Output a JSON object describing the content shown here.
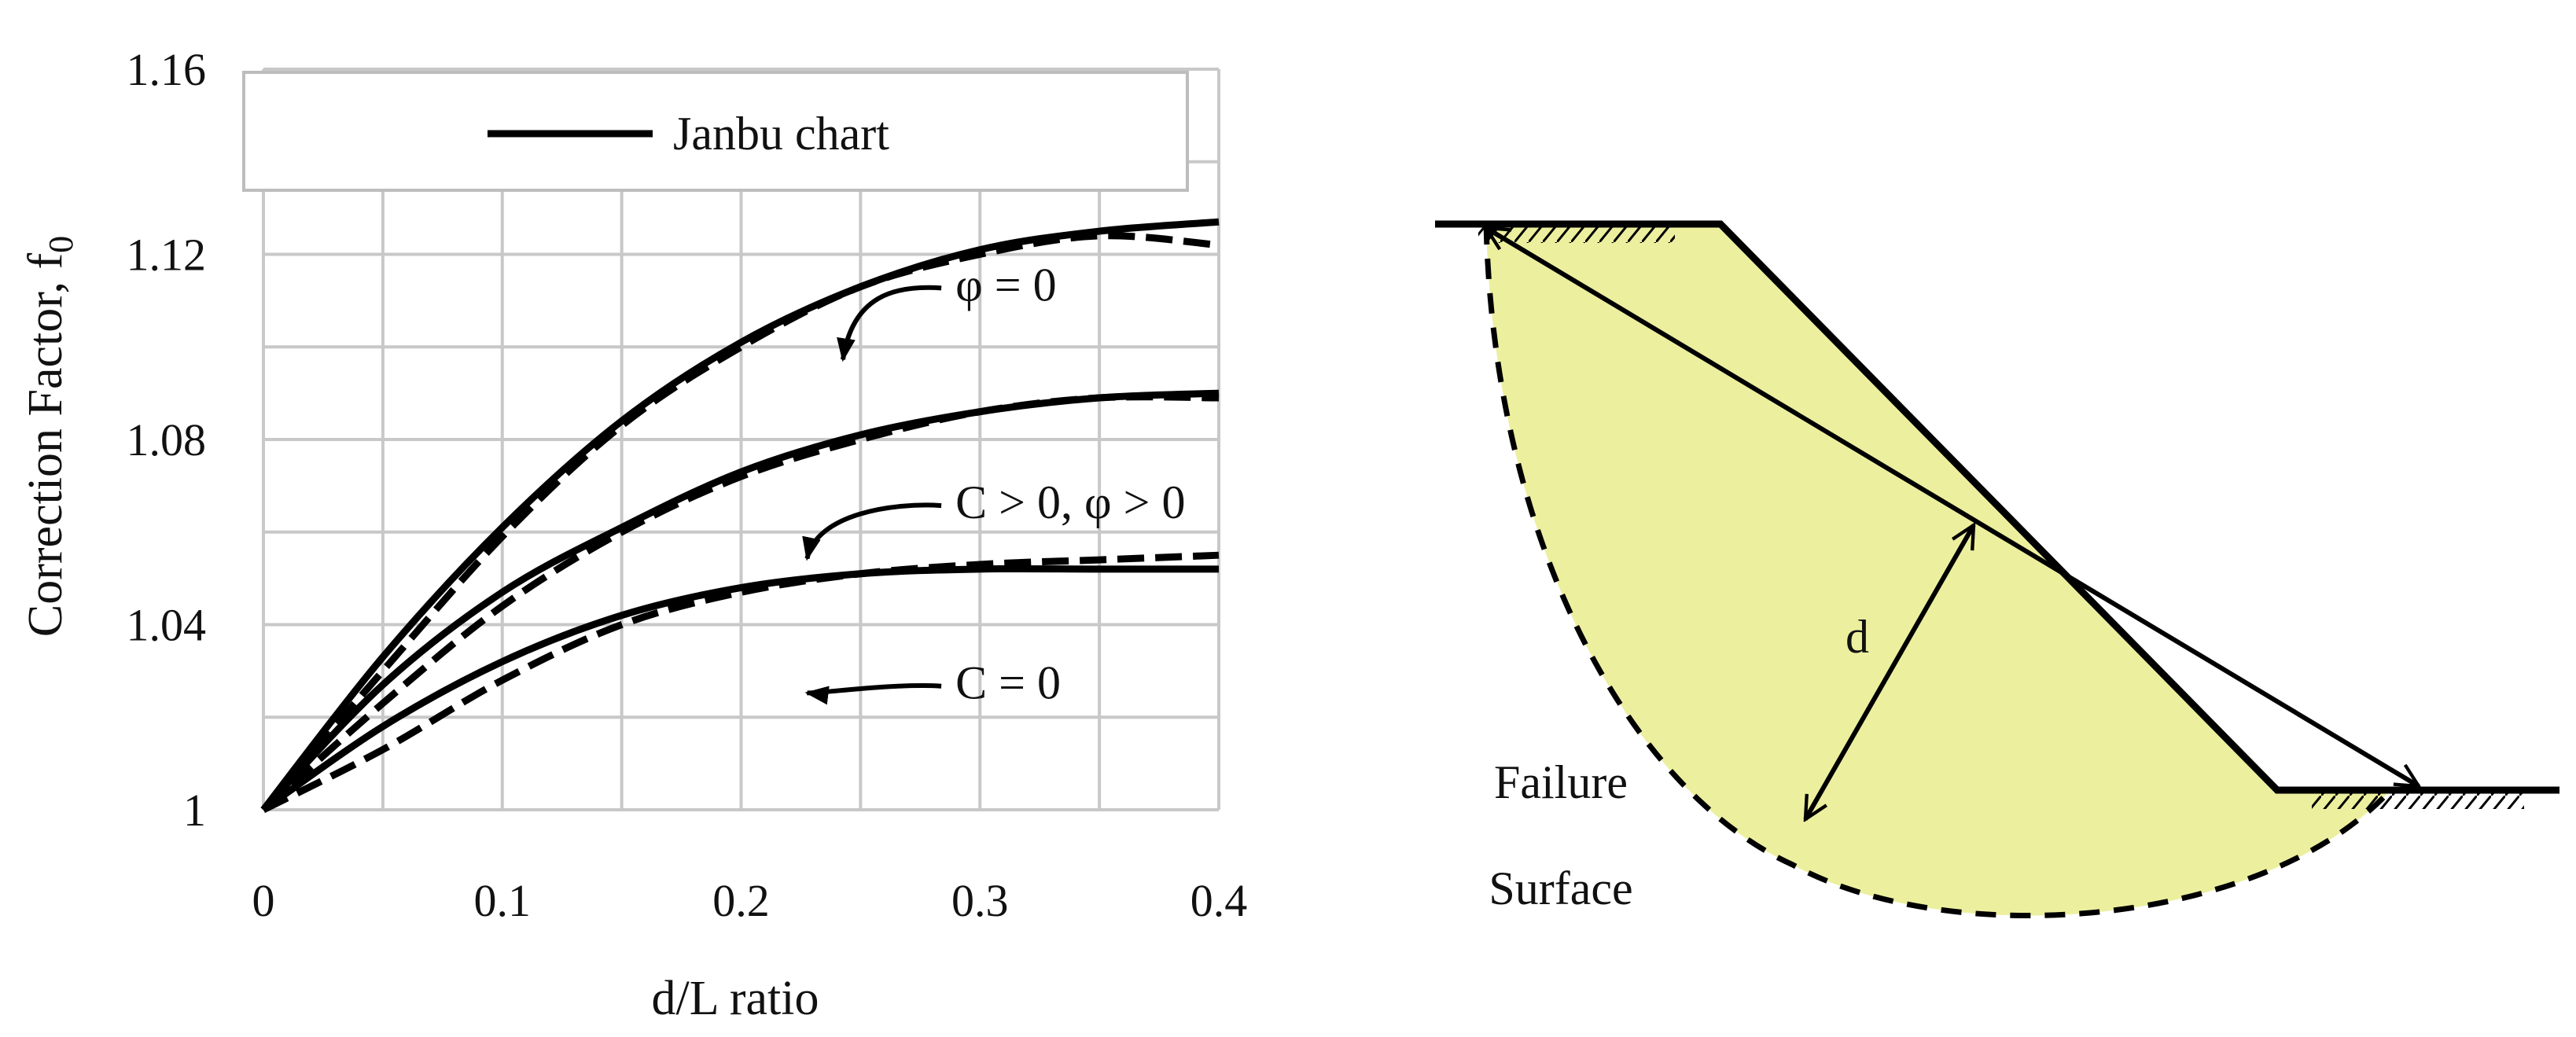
{
  "chart_data": {
    "type": "line",
    "xlabel": "d/L ratio",
    "ylabel": "Correction Factor, f",
    "ylabel_subscript": "0",
    "xlim": [
      0,
      0.4
    ],
    "ylim": [
      1,
      1.16
    ],
    "x_ticks": [
      "0",
      "0.1",
      "0.2",
      "0.3",
      "0.4"
    ],
    "y_ticks": [
      "1",
      "1.04",
      "1.08",
      "1.12",
      "1.16"
    ],
    "grid": true,
    "legend": {
      "position": "top",
      "entries": [
        "Janbu chart"
      ]
    },
    "x": [
      0,
      0.05,
      0.1,
      0.15,
      0.2,
      0.25,
      0.3,
      0.35,
      0.4
    ],
    "series": [
      {
        "name": "Janbu chart",
        "group": "φ = 0",
        "style": "solid",
        "values": [
          1.0,
          1.033,
          1.061,
          1.084,
          1.101,
          1.113,
          1.121,
          1.125,
          1.127
        ]
      },
      {
        "group": "φ = 0",
        "style": "dashed",
        "values": [
          1.0,
          1.03,
          1.059,
          1.083,
          1.1,
          1.113,
          1.12,
          1.124,
          1.122
        ]
      },
      {
        "group": "C > 0, φ > 0",
        "style": "solid",
        "values": [
          1.0,
          1.027,
          1.047,
          1.061,
          1.073,
          1.081,
          1.086,
          1.089,
          1.09
        ]
      },
      {
        "group": "C > 0, φ > 0",
        "style": "dashed",
        "values": [
          1.0,
          1.023,
          1.044,
          1.06,
          1.072,
          1.08,
          1.086,
          1.089,
          1.089
        ]
      },
      {
        "group": "C = 0",
        "style": "solid",
        "values": [
          1.0,
          1.018,
          1.032,
          1.042,
          1.048,
          1.051,
          1.052,
          1.052,
          1.052
        ]
      },
      {
        "group": "C = 0",
        "style": "dashed",
        "values": [
          1.0,
          1.013,
          1.028,
          1.04,
          1.047,
          1.051,
          1.053,
          1.054,
          1.055
        ]
      }
    ],
    "annotations": [
      {
        "text": "φ = 0",
        "x": 0.27,
        "y": 1.11
      },
      {
        "text": "C > 0, φ > 0",
        "x": 0.27,
        "y": 1.063
      },
      {
        "text": "C = 0",
        "x": 0.27,
        "y": 1.024
      }
    ]
  },
  "diagram": {
    "d_label": "d",
    "failure_label": "Failure",
    "surface_label": "Surface",
    "fill_color": "#ecef9e"
  }
}
